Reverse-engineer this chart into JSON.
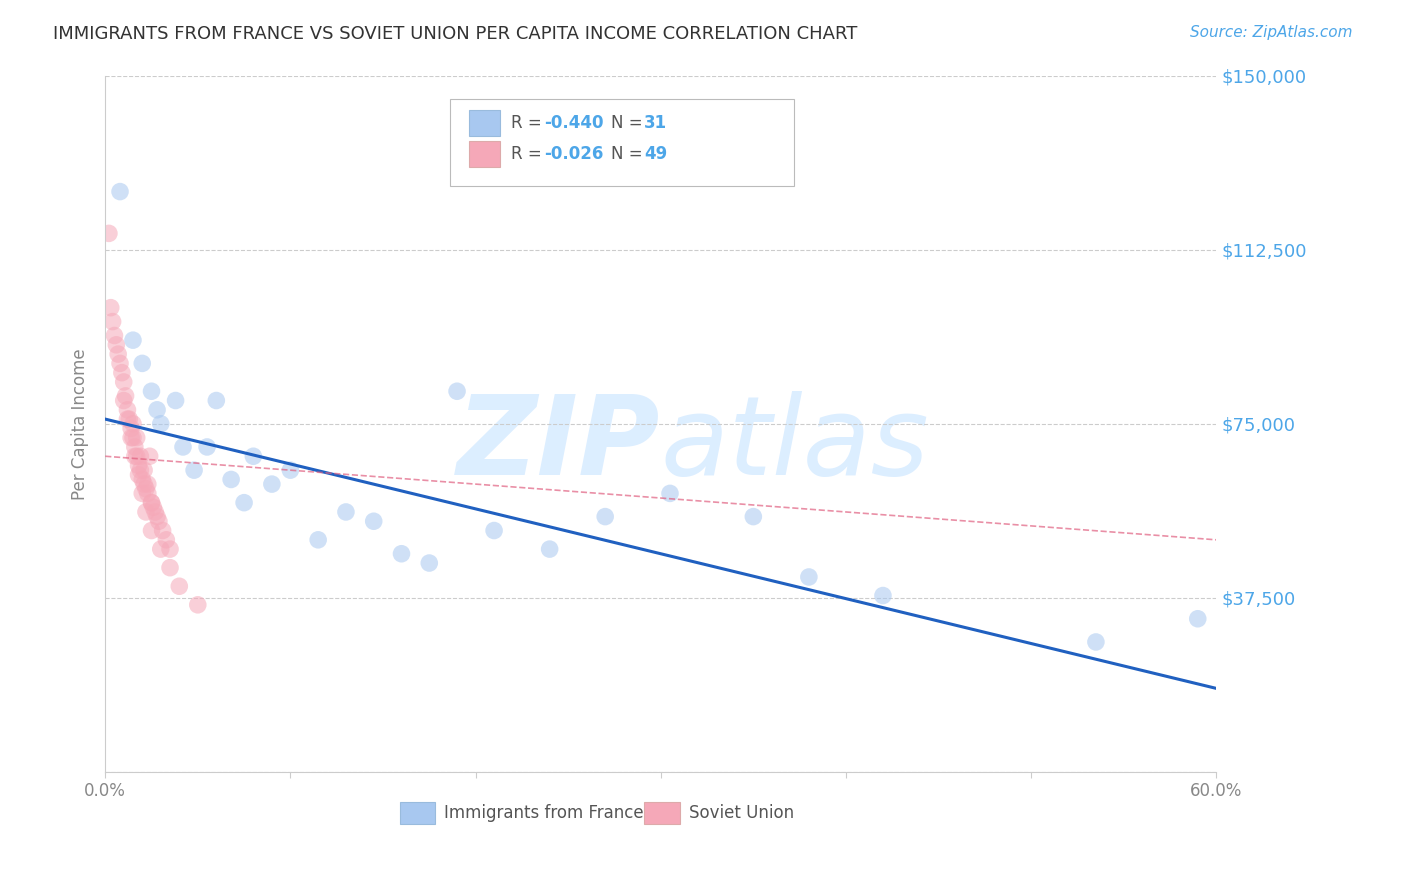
{
  "title": "IMMIGRANTS FROM FRANCE VS SOVIET UNION PER CAPITA INCOME CORRELATION CHART",
  "source": "Source: ZipAtlas.com",
  "ylabel": "Per Capita Income",
  "xlim": [
    0,
    0.6
  ],
  "ylim": [
    0,
    150000
  ],
  "yticks": [
    0,
    37500,
    75000,
    112500,
    150000
  ],
  "ytick_labels": [
    "",
    "$37,500",
    "$75,000",
    "$112,500",
    "$150,000"
  ],
  "xticks": [
    0.0,
    0.1,
    0.2,
    0.3,
    0.4,
    0.5,
    0.6
  ],
  "xtick_labels": [
    "0.0%",
    "",
    "",
    "",
    "",
    "",
    "60.0%"
  ],
  "france_color": "#a8c8f0",
  "soviet_color": "#f5a8b8",
  "france_line_color": "#2060c0",
  "soviet_line_color": "#e06080",
  "france_R": -0.44,
  "france_N": 31,
  "soviet_R": -0.026,
  "soviet_N": 49,
  "france_scatter_x": [
    0.008,
    0.015,
    0.02,
    0.025,
    0.028,
    0.03,
    0.038,
    0.042,
    0.048,
    0.055,
    0.06,
    0.068,
    0.075,
    0.08,
    0.09,
    0.1,
    0.115,
    0.13,
    0.145,
    0.16,
    0.175,
    0.19,
    0.21,
    0.24,
    0.27,
    0.305,
    0.35,
    0.38,
    0.42,
    0.535,
    0.59
  ],
  "france_scatter_y": [
    125000,
    93000,
    88000,
    82000,
    78000,
    75000,
    80000,
    70000,
    65000,
    70000,
    80000,
    63000,
    58000,
    68000,
    62000,
    65000,
    50000,
    56000,
    54000,
    47000,
    45000,
    82000,
    52000,
    48000,
    55000,
    60000,
    55000,
    42000,
    38000,
    28000,
    33000
  ],
  "soviet_scatter_x": [
    0.002,
    0.003,
    0.004,
    0.005,
    0.006,
    0.007,
    0.008,
    0.009,
    0.01,
    0.011,
    0.012,
    0.013,
    0.014,
    0.015,
    0.016,
    0.017,
    0.018,
    0.019,
    0.02,
    0.021,
    0.022,
    0.023,
    0.024,
    0.025,
    0.026,
    0.027,
    0.028,
    0.029,
    0.031,
    0.033,
    0.035,
    0.015,
    0.017,
    0.019,
    0.021,
    0.023,
    0.025,
    0.01,
    0.012,
    0.014,
    0.016,
    0.018,
    0.02,
    0.022,
    0.025,
    0.03,
    0.035,
    0.04,
    0.05
  ],
  "soviet_scatter_y": [
    116000,
    100000,
    97000,
    94000,
    92000,
    90000,
    88000,
    86000,
    84000,
    81000,
    78000,
    76000,
    74000,
    72000,
    70000,
    68000,
    66000,
    65000,
    63000,
    62000,
    61000,
    60000,
    68000,
    58000,
    57000,
    56000,
    55000,
    54000,
    52000,
    50000,
    48000,
    75000,
    72000,
    68000,
    65000,
    62000,
    58000,
    80000,
    76000,
    72000,
    68000,
    64000,
    60000,
    56000,
    52000,
    48000,
    44000,
    40000,
    36000
  ],
  "france_line_x": [
    0.0,
    0.6
  ],
  "france_line_y": [
    76000,
    18000
  ],
  "soviet_line_x": [
    0.0,
    0.6
  ],
  "soviet_line_y": [
    68000,
    50000
  ],
  "background_color": "#ffffff",
  "grid_color": "#cccccc",
  "title_color": "#333333",
  "axis_label_color": "#888888",
  "ytick_color": "#4da6e8",
  "xtick_color": "#888888",
  "watermark_color": "#dceeff",
  "legend_france_label": "Immigrants from France",
  "legend_soviet_label": "Soviet Union"
}
